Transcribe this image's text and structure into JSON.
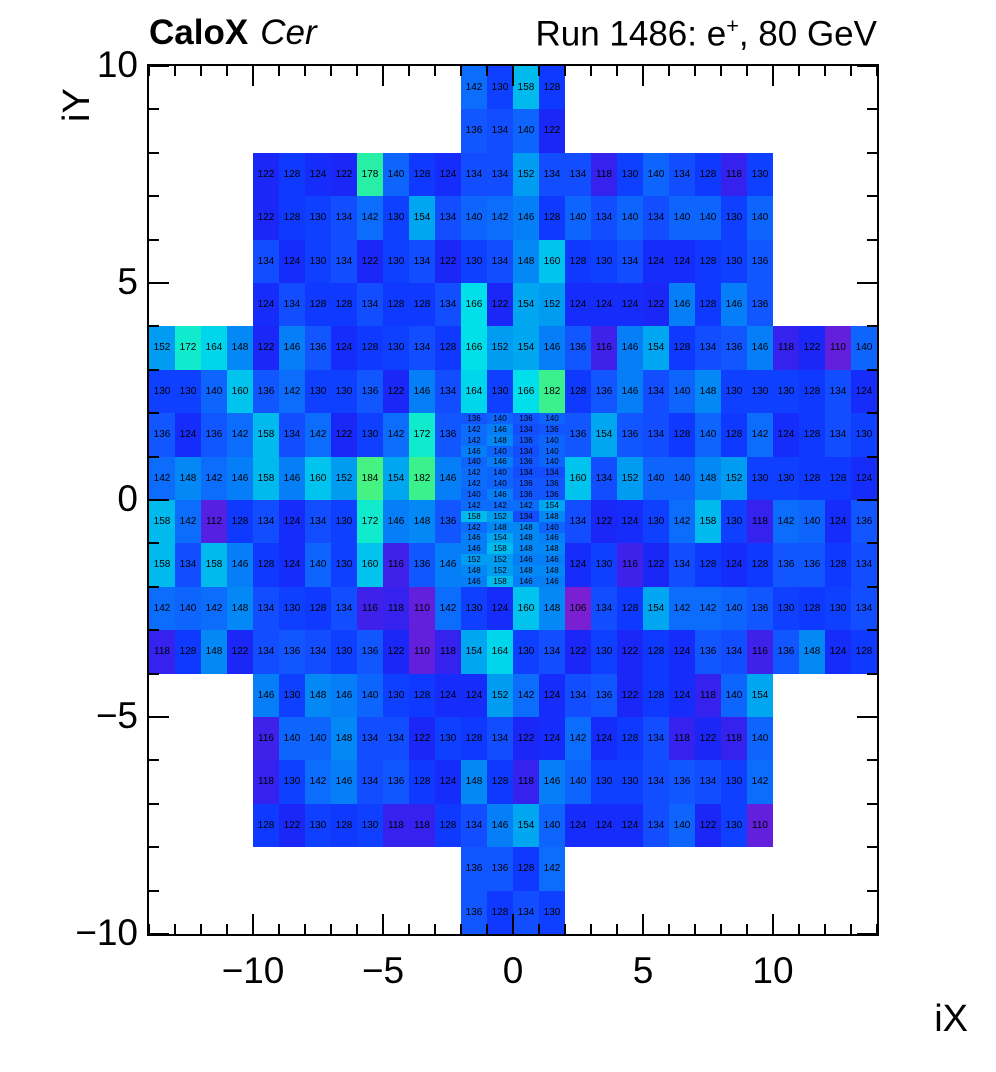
{
  "header": {
    "title_bold": "CaloX",
    "title_italic": "Cer",
    "run_prefix": "Run 1486: e",
    "run_sup": "+",
    "run_suffix": ", 80 GeV"
  },
  "chart_data": {
    "type": "heatmap",
    "title": "CaloX Cer — Run 1486: e+, 80 GeV",
    "xlabel": "iX",
    "ylabel": "iY",
    "x_range": [
      -14,
      14
    ],
    "y_range": [
      -10,
      10
    ],
    "x_ticks": {
      "major": [
        -10,
        -5,
        0,
        5,
        10
      ],
      "minor_step": 1
    },
    "y_ticks": {
      "major": [
        -10,
        -5,
        0,
        5,
        10
      ],
      "minor_step": 1
    },
    "grid": false,
    "legend": false,
    "zmin": 106,
    "zmax": 184,
    "palette": [
      [
        106,
        "#7a1fd2"
      ],
      [
        112,
        "#5620e2"
      ],
      [
        118,
        "#3522ee"
      ],
      [
        122,
        "#1b27f6"
      ],
      [
        126,
        "#0f31fd"
      ],
      [
        130,
        "#0f40ff"
      ],
      [
        134,
        "#124eff"
      ],
      [
        138,
        "#0f5dff"
      ],
      [
        142,
        "#0c6cfc"
      ],
      [
        146,
        "#067ef8"
      ],
      [
        150,
        "#0092f3"
      ],
      [
        154,
        "#00a6f0"
      ],
      [
        158,
        "#00baee"
      ],
      [
        162,
        "#00cdec"
      ],
      [
        166,
        "#00dfea"
      ],
      [
        170,
        "#06e9d8"
      ],
      [
        174,
        "#17edc0"
      ],
      [
        178,
        "#27f0a6"
      ],
      [
        182,
        "#3af18e"
      ],
      [
        184,
        "#46f282"
      ]
    ],
    "rows": [
      {
        "top": 10,
        "h": 1,
        "segs": [
          {
            "x": -2,
            "v": [
              142,
              130,
              158,
              128
            ]
          }
        ]
      },
      {
        "top": 9,
        "h": 1,
        "segs": [
          {
            "x": -2,
            "v": [
              136,
              134,
              140,
              122
            ]
          }
        ]
      },
      {
        "top": 8,
        "h": 1,
        "segs": [
          {
            "x": -10,
            "v": [
              122,
              128,
              124,
              122,
              178,
              140,
              128,
              124,
              134,
              134,
              152,
              134,
              134,
              118,
              130,
              140,
              134,
              128,
              118,
              130
            ]
          }
        ]
      },
      {
        "top": 7,
        "h": 1,
        "segs": [
          {
            "x": -10,
            "v": [
              122,
              128,
              130,
              134,
              142,
              130,
              154,
              134,
              140,
              142,
              146,
              128,
              140,
              134,
              140,
              134,
              140,
              140,
              130,
              140
            ]
          }
        ]
      },
      {
        "top": 6,
        "h": 1,
        "segs": [
          {
            "x": -10,
            "v": [
              134,
              124,
              130,
              134,
              122,
              130,
              134,
              122,
              130,
              134,
              148,
              160,
              128,
              130,
              134,
              124,
              124,
              128,
              130,
              136
            ]
          }
        ]
      },
      {
        "top": 5,
        "h": 1,
        "segs": [
          {
            "x": -10,
            "v": [
              124,
              134,
              128,
              128,
              134,
              128,
              128,
              134,
              166,
              122,
              154,
              152,
              124,
              124,
              124,
              122,
              146,
              128,
              146,
              136
            ]
          }
        ]
      },
      {
        "top": 4,
        "h": 1,
        "segs": [
          {
            "x": -14,
            "v": [
              152,
              172,
              164,
              148,
              122,
              146,
              136,
              124,
              128,
              130,
              134,
              128,
              166,
              152,
              154,
              146,
              136,
              116,
              146,
              154,
              128,
              134,
              136,
              146,
              118,
              122,
              110,
              140
            ]
          }
        ]
      },
      {
        "top": 3,
        "h": 1,
        "segs": [
          {
            "x": -14,
            "v": [
              130,
              130,
              140,
              160,
              136,
              142,
              130,
              130,
              136,
              122,
              146,
              134,
              164,
              130,
              166,
              182,
              128,
              136,
              146,
              134,
              140,
              148,
              130,
              130,
              130,
              128,
              134,
              124
            ]
          }
        ]
      },
      {
        "top": 2,
        "h": 1,
        "segs": [
          {
            "x": -14,
            "v": [
              136,
              124,
              136,
              142,
              158,
              134,
              142,
              122,
              130,
              142,
              172,
              136
            ]
          },
          {
            "x": 2,
            "v": [
              136,
              154,
              136,
              134,
              128,
              140,
              128,
              142,
              124,
              128,
              134,
              130
            ]
          }
        ]
      },
      {
        "top": 1,
        "h": 1,
        "segs": [
          {
            "x": -14,
            "v": [
              142,
              148,
              142,
              146,
              158,
              146,
              160,
              152,
              184,
              154,
              182,
              146
            ]
          },
          {
            "x": 2,
            "v": [
              160,
              134,
              152,
              140,
              140,
              148,
              152,
              130,
              130,
              128,
              128,
              124
            ]
          }
        ]
      },
      {
        "top": 0,
        "h": 1,
        "segs": [
          {
            "x": -14,
            "v": [
              158,
              142,
              112,
              128,
              134,
              124,
              134,
              130,
              172,
              146,
              148,
              136
            ]
          },
          {
            "x": 2,
            "v": [
              134,
              122,
              124,
              130,
              142,
              158,
              130,
              118,
              142,
              140,
              124,
              136
            ]
          }
        ]
      },
      {
        "top": -1,
        "h": 1,
        "segs": [
          {
            "x": -14,
            "v": [
              158,
              134,
              158,
              146,
              128,
              124,
              140,
              130,
              160,
              116,
              136,
              146
            ]
          },
          {
            "x": 2,
            "v": [
              124,
              130,
              116,
              122,
              134,
              128,
              124,
              128,
              136,
              136,
              128,
              134
            ]
          }
        ]
      },
      {
        "top": -2,
        "h": 1,
        "segs": [
          {
            "x": -14,
            "v": [
              142,
              140,
              142,
              148,
              134,
              130,
              128,
              134,
              116,
              118,
              110,
              142,
              130,
              124,
              160,
              148,
              106,
              134,
              128,
              154,
              142,
              142,
              140,
              136,
              130,
              128,
              130,
              134
            ]
          }
        ]
      },
      {
        "top": -3,
        "h": 1,
        "segs": [
          {
            "x": -14,
            "v": [
              118,
              128,
              148,
              122,
              134,
              136,
              134,
              130,
              136,
              122,
              110,
              118,
              154,
              164,
              130,
              134,
              122,
              130,
              122,
              128,
              124,
              136,
              134,
              116,
              136,
              148,
              124,
              128
            ]
          }
        ]
      },
      {
        "top": -4,
        "h": 1,
        "segs": [
          {
            "x": -10,
            "v": [
              146,
              130,
              148,
              146,
              140,
              130,
              128,
              124,
              124,
              152,
              142,
              124,
              134,
              136,
              122,
              128,
              124,
              118,
              140,
              154
            ]
          }
        ]
      },
      {
        "top": -5,
        "h": 1,
        "segs": [
          {
            "x": -10,
            "v": [
              116,
              140,
              140,
              148,
              134,
              134,
              122,
              130,
              128,
              134,
              122,
              124,
              142,
              124,
              128,
              134,
              118,
              122,
              118,
              140
            ]
          }
        ]
      },
      {
        "top": -6,
        "h": 1,
        "segs": [
          {
            "x": -10,
            "v": [
              118,
              130,
              142,
              146,
              134,
              136,
              128,
              124,
              148,
              128,
              118,
              146,
              140,
              130,
              130,
              134,
              136,
              134,
              130,
              142
            ]
          }
        ]
      },
      {
        "top": -7,
        "h": 1,
        "segs": [
          {
            "x": -10,
            "v": [
              128,
              122,
              130,
              128,
              130,
              118,
              118,
              128,
              134,
              146,
              154,
              140,
              124,
              124,
              124,
              134,
              140,
              122,
              130,
              110
            ]
          }
        ]
      },
      {
        "top": -8,
        "h": 1,
        "segs": [
          {
            "x": -2,
            "v": [
              136,
              136,
              128,
              142
            ]
          }
        ]
      },
      {
        "top": -9,
        "h": 1,
        "segs": [
          {
            "x": -2,
            "v": [
              136,
              128,
              134,
              130
            ]
          }
        ]
      },
      {
        "top": 2.0,
        "h": 0.25,
        "segs": [
          {
            "x": -2,
            "v": [
              136,
              140,
              136,
              140
            ]
          }
        ]
      },
      {
        "top": 1.75,
        "h": 0.25,
        "segs": [
          {
            "x": -2,
            "v": [
              142,
              146,
              134,
              136
            ]
          }
        ]
      },
      {
        "top": 1.5,
        "h": 0.25,
        "segs": [
          {
            "x": -2,
            "v": [
              142,
              148,
              136,
              140
            ]
          }
        ]
      },
      {
        "top": 1.25,
        "h": 0.25,
        "segs": [
          {
            "x": -2,
            "v": [
              146,
              140,
              134,
              140
            ]
          }
        ]
      },
      {
        "top": 1.0,
        "h": 0.25,
        "segs": [
          {
            "x": -2,
            "v": [
              140,
              146,
              136,
              140
            ]
          }
        ]
      },
      {
        "top": 0.75,
        "h": 0.25,
        "segs": [
          {
            "x": -2,
            "v": [
              142,
              140,
              134,
              134
            ]
          }
        ]
      },
      {
        "top": 0.5,
        "h": 0.25,
        "segs": [
          {
            "x": -2,
            "v": [
              142,
              140,
              136,
              136
            ]
          }
        ]
      },
      {
        "top": 0.25,
        "h": 0.25,
        "segs": [
          {
            "x": -2,
            "v": [
              140,
              146,
              136,
              136
            ]
          }
        ]
      },
      {
        "top": 0.0,
        "h": 0.25,
        "segs": [
          {
            "x": -2,
            "v": [
              142,
              142,
              142,
              154
            ]
          }
        ]
      },
      {
        "top": -0.25,
        "h": 0.25,
        "segs": [
          {
            "x": -2,
            "v": [
              158,
              152,
              134,
              148
            ]
          }
        ]
      },
      {
        "top": -0.5,
        "h": 0.25,
        "segs": [
          {
            "x": -2,
            "v": [
              142,
              148,
              148,
              140
            ]
          }
        ]
      },
      {
        "top": -0.75,
        "h": 0.25,
        "segs": [
          {
            "x": -2,
            "v": [
              146,
              154,
              148,
              146
            ]
          }
        ]
      },
      {
        "top": -1.0,
        "h": 0.25,
        "segs": [
          {
            "x": -2,
            "v": [
              146,
              158,
              148,
              148
            ]
          }
        ]
      },
      {
        "top": -1.25,
        "h": 0.25,
        "segs": [
          {
            "x": -2,
            "v": [
              152,
              152,
              146,
              146
            ]
          }
        ]
      },
      {
        "top": -1.5,
        "h": 0.25,
        "segs": [
          {
            "x": -2,
            "v": [
              148,
              152,
              148,
              148
            ]
          }
        ]
      },
      {
        "top": -1.75,
        "h": 0.25,
        "segs": [
          {
            "x": -2,
            "v": [
              146,
              158,
              146,
              146
            ]
          }
        ]
      }
    ]
  }
}
